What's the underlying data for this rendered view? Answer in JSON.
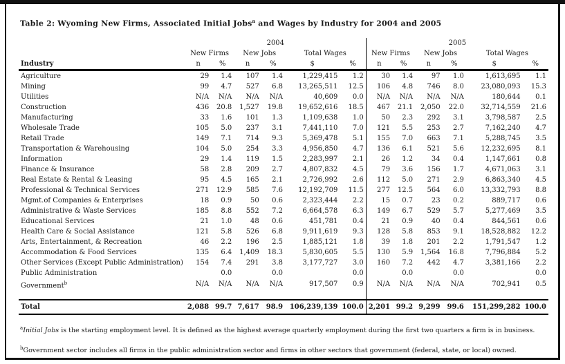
{
  "title": {
    "main": "Table 2: Wyoming New Firms, Associated Initial Jobs",
    "sup": "a",
    "rest": " and Wages by Industry for 2004 and 2005"
  },
  "table": {
    "industry_header": "Industry",
    "year_groups": [
      "2004",
      "2005"
    ],
    "group_headers": [
      "New Firms",
      "New Jobs",
      "Total Wages"
    ],
    "unit_headers": [
      "n",
      "%",
      "n",
      "%",
      "$",
      "%"
    ],
    "rows": [
      {
        "industry": "Agriculture",
        "sup": "",
        "v": [
          "29",
          "1.4",
          "107",
          "1.4",
          "1,229,415",
          "1.2",
          "30",
          "1.4",
          "97",
          "1.0",
          "1,613,695",
          "1.1"
        ]
      },
      {
        "industry": "Mining",
        "sup": "",
        "v": [
          "99",
          "4.7",
          "527",
          "6.8",
          "13,265,511",
          "12.5",
          "106",
          "4.8",
          "746",
          "8.0",
          "23,080,093",
          "15.3"
        ]
      },
      {
        "industry": "Utilities",
        "sup": "",
        "v": [
          "N/A",
          "N/A",
          "N/A",
          "N/A",
          "40,609",
          "0.0",
          "N/A",
          "N/A",
          "N/A",
          "N/A",
          "180,644",
          "0.1"
        ]
      },
      {
        "industry": "Construction",
        "sup": "",
        "v": [
          "436",
          "20.8",
          "1,527",
          "19.8",
          "19,652,616",
          "18.5",
          "467",
          "21.1",
          "2,050",
          "22.0",
          "32,714,559",
          "21.6"
        ]
      },
      {
        "industry": "Manufacturing",
        "sup": "",
        "v": [
          "33",
          "1.6",
          "101",
          "1.3",
          "1,109,638",
          "1.0",
          "50",
          "2.3",
          "292",
          "3.1",
          "3,798,587",
          "2.5"
        ]
      },
      {
        "industry": "Wholesale Trade",
        "sup": "",
        "v": [
          "105",
          "5.0",
          "237",
          "3.1",
          "7,441,110",
          "7.0",
          "121",
          "5.5",
          "253",
          "2.7",
          "7,162,240",
          "4.7"
        ]
      },
      {
        "industry": "Retail Trade",
        "sup": "",
        "v": [
          "149",
          "7.1",
          "714",
          "9.3",
          "5,369,478",
          "5.1",
          "155",
          "7.0",
          "663",
          "7.1",
          "5,288,745",
          "3.5"
        ]
      },
      {
        "industry": "Transportation & Warehousing",
        "sup": "",
        "v": [
          "104",
          "5.0",
          "254",
          "3.3",
          "4,956,850",
          "4.7",
          "136",
          "6.1",
          "521",
          "5.6",
          "12,232,695",
          "8.1"
        ]
      },
      {
        "industry": "Information",
        "sup": "",
        "v": [
          "29",
          "1.4",
          "119",
          "1.5",
          "2,283,997",
          "2.1",
          "26",
          "1.2",
          "34",
          "0.4",
          "1,147,661",
          "0.8"
        ]
      },
      {
        "industry": "Finance & Insurance",
        "sup": "",
        "v": [
          "58",
          "2.8",
          "209",
          "2.7",
          "4,807,832",
          "4.5",
          "79",
          "3.6",
          "156",
          "1.7",
          "4,671,063",
          "3.1"
        ]
      },
      {
        "industry": "Real Estate & Rental & Leasing",
        "sup": "",
        "v": [
          "95",
          "4.5",
          "165",
          "2.1",
          "2,726,992",
          "2.6",
          "112",
          "5.0",
          "271",
          "2.9",
          "6,863,340",
          "4.5"
        ]
      },
      {
        "industry": "Professional & Technical Services",
        "sup": "",
        "v": [
          "271",
          "12.9",
          "585",
          "7.6",
          "12,192,709",
          "11.5",
          "277",
          "12.5",
          "564",
          "6.0",
          "13,332,793",
          "8.8"
        ]
      },
      {
        "industry": "Mgmt.of Companies & Enterprises",
        "sup": "",
        "v": [
          "18",
          "0.9",
          "50",
          "0.6",
          "2,323,444",
          "2.2",
          "15",
          "0.7",
          "23",
          "0.2",
          "889,717",
          "0.6"
        ]
      },
      {
        "industry": "Administrative & Waste Services",
        "sup": "",
        "v": [
          "185",
          "8.8",
          "552",
          "7.2",
          "6,664,578",
          "6.3",
          "149",
          "6.7",
          "529",
          "5.7",
          "5,277,469",
          "3.5"
        ]
      },
      {
        "industry": "Educational Services",
        "sup": "",
        "v": [
          "21",
          "1.0",
          "48",
          "0.6",
          "451,781",
          "0.4",
          "21",
          "0.9",
          "40",
          "0.4",
          "844,561",
          "0.6"
        ]
      },
      {
        "industry": "Health Care & Social Assistance",
        "sup": "",
        "v": [
          "121",
          "5.8",
          "526",
          "6.8",
          "9,911,619",
          "9.3",
          "128",
          "5.8",
          "853",
          "9.1",
          "18,528,882",
          "12.2"
        ]
      },
      {
        "industry": "Arts, Entertainment, & Recreation",
        "sup": "",
        "v": [
          "46",
          "2.2",
          "196",
          "2.5",
          "1,885,121",
          "1.8",
          "39",
          "1.8",
          "201",
          "2.2",
          "1,791,547",
          "1.2"
        ]
      },
      {
        "industry": "Accommodation & Food Services",
        "sup": "",
        "v": [
          "135",
          "6.4",
          "1,409",
          "18.3",
          "5,830,605",
          "5.5",
          "130",
          "5.9",
          "1,564",
          "16.8",
          "7,796,884",
          "5.2"
        ]
      },
      {
        "industry": "Other Services (Except Public Administration)",
        "sup": "",
        "v": [
          "154",
          "7.4",
          "291",
          "3.8",
          "3,177,727",
          "3.0",
          "160",
          "7.2",
          "442",
          "4.7",
          "3,381,166",
          "2.2"
        ]
      },
      {
        "industry": "Public Administration",
        "sup": "",
        "v": [
          "",
          "0.0",
          "",
          "0.0",
          "",
          "0.0",
          "",
          "0.0",
          "",
          "0.0",
          "",
          "0.0"
        ]
      },
      {
        "industry": "Government",
        "sup": "b",
        "v": [
          "N/A",
          "N/A",
          "N/A",
          "N/A",
          "917,507",
          "0.9",
          "N/A",
          "N/A",
          "N/A",
          "N/A",
          "702,941",
          "0.5"
        ]
      }
    ],
    "total": {
      "label": "Total",
      "v": [
        "2,088",
        "99.7",
        "7,617",
        "98.9",
        "106,239,139",
        "100.0",
        "2,201",
        "99.2",
        "9,299",
        "99.6",
        "151,299,282",
        "100.0"
      ]
    }
  },
  "footnotes": [
    {
      "sup": "a",
      "italic": "Initial Jobs",
      "text": " is the starting employment level. It is defined as the highest average quarterly employment during the first two quarters a firm is in business."
    },
    {
      "sup": "b",
      "italic": "",
      "text": "Government sector includes all firms in the public administration sector and firms in other sectors that government (federal, state, or local) owned."
    }
  ]
}
